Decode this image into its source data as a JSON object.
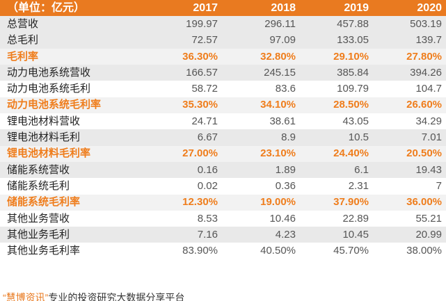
{
  "table": {
    "unit_label": "（单位：亿元）",
    "columns": [
      "2017",
      "2018",
      "2019",
      "2020"
    ],
    "rows": [
      {
        "label": "总营收",
        "values": [
          "199.97",
          "296.11",
          "457.88",
          "503.19"
        ],
        "style": "shade"
      },
      {
        "label": "总毛利",
        "values": [
          "72.57",
          "97.09",
          "133.05",
          "139.7"
        ],
        "style": "shade"
      },
      {
        "label": "毛利率",
        "values": [
          "36.30%",
          "32.80%",
          "29.10%",
          "27.80%"
        ],
        "style": "margin"
      },
      {
        "label": "动力电池系统营收",
        "values": [
          "166.57",
          "245.15",
          "385.84",
          "394.26"
        ],
        "style": "shade"
      },
      {
        "label": "动力电池系统毛利",
        "values": [
          "58.72",
          "83.6",
          "109.79",
          "104.7"
        ],
        "style": "white"
      },
      {
        "label": "动力电池系统毛利率",
        "values": [
          "35.30%",
          "34.10%",
          "28.50%",
          "26.60%"
        ],
        "style": "margin"
      },
      {
        "label": "锂电池材料营收",
        "values": [
          "24.71",
          "38.61",
          "43.05",
          "34.29"
        ],
        "style": "white"
      },
      {
        "label": "锂电池材料毛利",
        "values": [
          "6.67",
          "8.9",
          "10.5",
          "7.01"
        ],
        "style": "shade"
      },
      {
        "label": "锂电池材料毛利率",
        "values": [
          "27.00%",
          "23.10%",
          "24.40%",
          "20.50%"
        ],
        "style": "margin"
      },
      {
        "label": "储能系统营收",
        "values": [
          "0.16",
          "1.89",
          "6.1",
          "19.43"
        ],
        "style": "shade"
      },
      {
        "label": "储能系统毛利",
        "values": [
          "0.02",
          "0.36",
          "2.31",
          "7"
        ],
        "style": "white"
      },
      {
        "label": "储能系统毛利率",
        "values": [
          "12.30%",
          "19.00%",
          "37.90%",
          "36.00%"
        ],
        "style": "margin"
      },
      {
        "label": "其他业务营收",
        "values": [
          "8.53",
          "10.46",
          "22.89",
          "55.21"
        ],
        "style": "white"
      },
      {
        "label": "其他业务毛利",
        "values": [
          "7.16",
          "4.23",
          "10.45",
          "20.99"
        ],
        "style": "shade"
      },
      {
        "label": "其他业务毛利率",
        "values": [
          "83.90%",
          "40.50%",
          "45.70%",
          "38.00%"
        ],
        "style": "white"
      }
    ]
  },
  "footer": {
    "source": "“慧博资讯”",
    "text": "专业的投资研究大数据分享平台"
  }
}
